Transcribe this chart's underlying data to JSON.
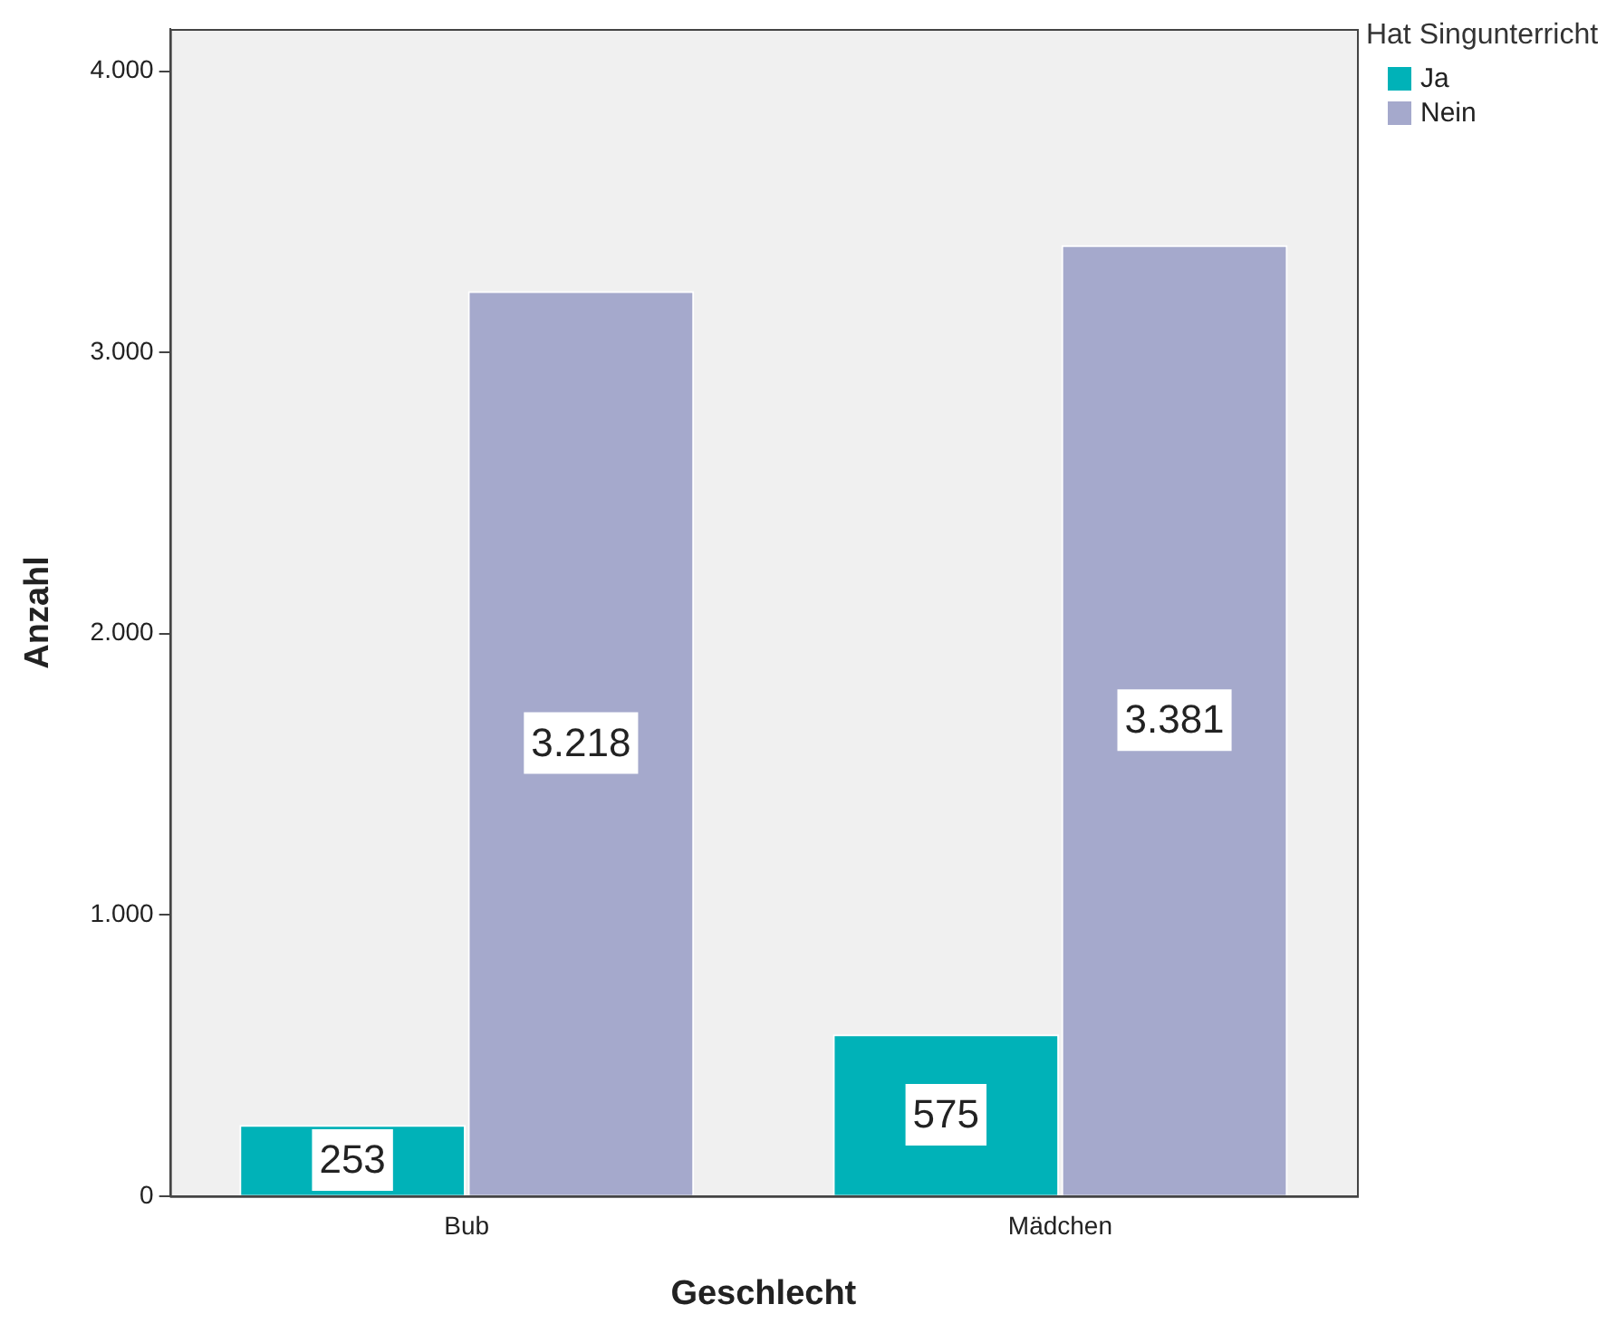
{
  "chart_data": {
    "type": "bar",
    "xlabel": "Geschlecht",
    "ylabel": "Anzahl",
    "legend_title": "Hat Singunterricht",
    "categories": [
      "Bub",
      "Mädchen"
    ],
    "series": [
      {
        "name": "Ja",
        "color": "#00b2b8",
        "values": [
          253,
          575
        ],
        "value_labels": [
          "253",
          "575"
        ]
      },
      {
        "name": "Nein",
        "color": "#a5a9cc",
        "values": [
          3218,
          3381
        ],
        "value_labels": [
          "3.218",
          "3.381"
        ]
      }
    ],
    "ylim": [
      0,
      4150
    ],
    "yticks": [
      {
        "value": 0,
        "label": "0"
      },
      {
        "value": 1000,
        "label": "1.000"
      },
      {
        "value": 2000,
        "label": "2.000"
      },
      {
        "value": 3000,
        "label": "3.000"
      },
      {
        "value": 4000,
        "label": "4.000"
      }
    ],
    "grid": false,
    "legend": "top right"
  }
}
